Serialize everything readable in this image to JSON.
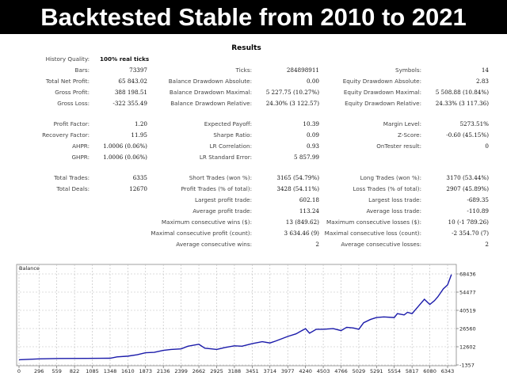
{
  "banner": {
    "title": "Backtested Stable from 2010 to 2021"
  },
  "results": {
    "title": "Results",
    "history": {
      "label": "History Quality:",
      "value": "100% real ticks"
    },
    "rows": [
      [
        [
          "Bars:",
          "73397"
        ],
        [
          "Ticks:",
          "284898911"
        ],
        [
          "Symbols:",
          "14"
        ]
      ],
      [
        [
          "Total Net Profit:",
          "65 843.02"
        ],
        [
          "Balance Drawdown Absolute:",
          "0.00"
        ],
        [
          "Equity Drawdown Absolute:",
          "2.83"
        ]
      ],
      [
        [
          "Gross Profit:",
          "388 198.51"
        ],
        [
          "Balance Drawdown Maximal:",
          "5 227.75 (10.27%)"
        ],
        [
          "Equity Drawdown Maximal:",
          "5 508.88 (10.84%)"
        ]
      ],
      [
        [
          "Gross Loss:",
          "-322 355.49"
        ],
        [
          "Balance Drawdown Relative:",
          "24.30% (3 122.57)"
        ],
        [
          "Equity Drawdown Relative:",
          "24.33% (3 117.36)"
        ]
      ],
      [
        [
          "Profit Factor:",
          "1.20"
        ],
        [
          "Expected Payoff:",
          "10.39"
        ],
        [
          "Margin Level:",
          "5273.51%"
        ]
      ],
      [
        [
          "Recovery Factor:",
          "11.95"
        ],
        [
          "Sharpe Ratio:",
          "0.09"
        ],
        [
          "Z-Score:",
          "-0.60 (45.15%)"
        ]
      ],
      [
        [
          "AHPR:",
          "1.0006 (0.06%)"
        ],
        [
          "LR Correlation:",
          "0.93"
        ],
        [
          "OnTester result:",
          "0"
        ]
      ],
      [
        [
          "GHPR:",
          "1.0006 (0.06%)"
        ],
        [
          "LR Standard Error:",
          "5 857.99"
        ],
        [
          "",
          ""
        ]
      ],
      [
        [
          "Total Trades:",
          "6335"
        ],
        [
          "Short Trades (won %):",
          "3165 (54.79%)"
        ],
        [
          "Long Trades (won %):",
          "3170 (53.44%)"
        ]
      ],
      [
        [
          "Total Deals:",
          "12670"
        ],
        [
          "Profit Trades (% of total):",
          "3428 (54.11%)"
        ],
        [
          "Loss Trades (% of total):",
          "2907 (45.89%)"
        ]
      ],
      [
        [
          "",
          ""
        ],
        [
          "Largest profit trade:",
          "602.18"
        ],
        [
          "Largest loss trade:",
          "-689.35"
        ]
      ],
      [
        [
          "",
          ""
        ],
        [
          "Average profit trade:",
          "113.24"
        ],
        [
          "Average loss trade:",
          "-110.89"
        ]
      ],
      [
        [
          "",
          ""
        ],
        [
          "Maximum consecutive wins ($):",
          "13 (849.62)"
        ],
        [
          "Maximum consecutive losses ($):",
          "10 (-1 789.26)"
        ]
      ],
      [
        [
          "",
          ""
        ],
        [
          "Maximal consecutive profit (count):",
          "3 634.46 (9)"
        ],
        [
          "Maximal consecutive loss (count):",
          "-2 354.70 (7)"
        ]
      ],
      [
        [
          "",
          ""
        ],
        [
          "Average consecutive wins:",
          "2"
        ],
        [
          "Average consecutive losses:",
          "2"
        ]
      ]
    ]
  },
  "chart_data": {
    "type": "line",
    "title": "Balance",
    "x_ticks": [
      0,
      296,
      559,
      822,
      1085,
      1348,
      1610,
      1873,
      2136,
      2399,
      2662,
      2925,
      3188,
      3451,
      3714,
      3977,
      4240,
      4503,
      4766,
      5029,
      5291,
      5554,
      5817,
      6080,
      6343
    ],
    "y_ticks": [
      68436,
      54477,
      40519,
      26560,
      12602,
      -1357
    ],
    "xlim": [
      0,
      6400
    ],
    "ylim": [
      -1357,
      68436
    ],
    "grid": true,
    "line_color": "#1a1aaa",
    "series": [
      {
        "x": [
          0,
          300,
          600,
          1000,
          1348,
          1450,
          1610,
          1750,
          1873,
          2000,
          2136,
          2250,
          2399,
          2500,
          2662,
          2750,
          2850,
          2925,
          3050,
          3188,
          3300,
          3451,
          3600,
          3714,
          3800,
          3977,
          4100,
          4240,
          4300,
          4400,
          4503,
          4650,
          4766,
          4850,
          4950,
          5029,
          5100,
          5200,
          5291,
          5400,
          5554,
          5600,
          5700,
          5750,
          5817,
          5900,
          6000,
          6080,
          6150,
          6200,
          6280,
          6343,
          6400
        ],
        "y": [
          2600,
          3300,
          3600,
          3700,
          3800,
          4800,
          5400,
          6500,
          8000,
          8300,
          9800,
          10500,
          11000,
          13000,
          14500,
          11500,
          11000,
          10500,
          12000,
          13300,
          13000,
          15000,
          16500,
          15500,
          17000,
          20500,
          22500,
          26500,
          23000,
          26000,
          26000,
          26500,
          25000,
          27500,
          27000,
          26000,
          31000,
          33500,
          35000,
          35500,
          35000,
          38000,
          37000,
          39000,
          38000,
          43000,
          49000,
          45000,
          48000,
          51000,
          57000,
          60000,
          68000
        ]
      }
    ]
  }
}
